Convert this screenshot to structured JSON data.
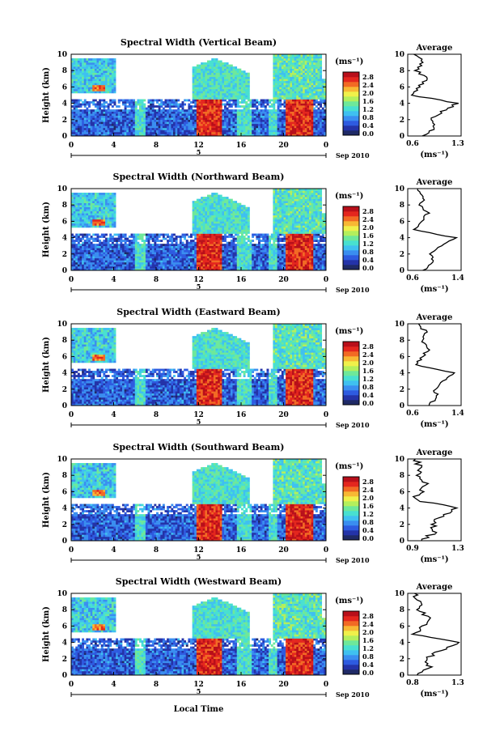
{
  "xlabel": "Local Time",
  "date_label": "Sep 2010",
  "date_day": "5",
  "x_ticks": [
    "0",
    "4",
    "8",
    "12",
    "16",
    "20",
    "0"
  ],
  "y_ticks": [
    "0",
    "2",
    "4",
    "6",
    "8",
    "10"
  ],
  "ylabel": "Height (km)",
  "colorbar_unit": "(ms⁻¹)",
  "colorbar_ticks": [
    "0.0",
    "0.4",
    "0.8",
    "1.2",
    "1.6",
    "2.0",
    "2.4",
    "2.8"
  ],
  "avg_title": "Average",
  "avg_unit": "(ms⁻¹)",
  "colorscale": [
    "#1f2a66",
    "#2433a8",
    "#2e5be0",
    "#3a8ef0",
    "#3fc0f0",
    "#48e0d0",
    "#6ee89a",
    "#b4ef5c",
    "#f0f04a",
    "#f8b834",
    "#f26a24",
    "#e4261e",
    "#b80f1a"
  ],
  "chart_data": [
    {
      "type": "heatmap",
      "title": "Spectral Width (Vertical Beam)",
      "xlabel": "Local Time",
      "ylabel": "Height (km)",
      "xlim": [
        0,
        24
      ],
      "ylim": [
        0,
        10
      ],
      "zlim": [
        0,
        2.8
      ],
      "average": {
        "title": "Average",
        "xlim": [
          0.6,
          1.3
        ],
        "x_ticks": [
          "0.6",
          "1.3"
        ],
        "height": [
          0,
          1,
          2,
          3,
          4,
          5,
          6,
          7,
          8,
          9,
          10
        ],
        "values": [
          0.8,
          0.95,
          0.9,
          1.05,
          1.25,
          0.65,
          0.75,
          0.85,
          0.72,
          0.8,
          0.7
        ]
      }
    },
    {
      "type": "heatmap",
      "title": "Spectral Width (Northward Beam)",
      "xlabel": "Local Time",
      "ylabel": "Height (km)",
      "xlim": [
        0,
        24
      ],
      "ylim": [
        0,
        10
      ],
      "zlim": [
        0,
        2.8
      ],
      "average": {
        "title": "Average",
        "xlim": [
          0.6,
          1.4
        ],
        "x_ticks": [
          "0.6",
          "1.4"
        ],
        "height": [
          0,
          1,
          2,
          3,
          4,
          5,
          6,
          7,
          8,
          9,
          10
        ],
        "values": [
          0.85,
          1.0,
          0.95,
          1.1,
          1.3,
          0.7,
          0.8,
          0.9,
          0.78,
          0.85,
          0.75
        ]
      }
    },
    {
      "type": "heatmap",
      "title": "Spectral Width (Eastward Beam)",
      "xlabel": "Local Time",
      "ylabel": "Height (km)",
      "xlim": [
        0,
        24
      ],
      "ylim": [
        0,
        10
      ],
      "zlim": [
        0,
        2.8
      ],
      "average": {
        "title": "Average",
        "xlim": [
          0.6,
          1.4
        ],
        "x_ticks": [
          "0.6",
          "1.4"
        ],
        "height": [
          0,
          1,
          2,
          3,
          4,
          5,
          6,
          7,
          8,
          9,
          10
        ],
        "values": [
          0.9,
          1.05,
          1.0,
          1.15,
          1.3,
          0.72,
          0.82,
          0.92,
          0.8,
          0.88,
          0.74
        ]
      }
    },
    {
      "type": "heatmap",
      "title": "Spectral Width (Southward Beam)",
      "xlabel": "Local Time",
      "ylabel": "Height (km)",
      "xlim": [
        0,
        24
      ],
      "ylim": [
        0,
        10
      ],
      "zlim": [
        0,
        2.8
      ],
      "average": {
        "title": "Average",
        "xlim": [
          0.9,
          1.3
        ],
        "x_ticks": [
          "0.9",
          "1.3"
        ],
        "height": [
          0,
          1,
          2,
          3,
          4,
          5,
          6,
          7,
          8,
          9,
          10
        ],
        "values": [
          1.0,
          1.1,
          1.08,
          1.15,
          1.28,
          0.95,
          1.0,
          1.05,
          0.98,
          1.0,
          0.95
        ]
      }
    },
    {
      "type": "heatmap",
      "title": "Spectral Width (Westward Beam)",
      "xlabel": "Local Time",
      "ylabel": "Height (km)",
      "xlim": [
        0,
        24
      ],
      "ylim": [
        0,
        10
      ],
      "zlim": [
        0,
        2.8
      ],
      "average": {
        "title": "Average",
        "xlim": [
          0.8,
          1.3
        ],
        "x_ticks": [
          "0.8",
          "1.3"
        ],
        "height": [
          0,
          1,
          2,
          3,
          4,
          5,
          6,
          7,
          8,
          9,
          10
        ],
        "values": [
          0.9,
          1.0,
          0.98,
          1.1,
          1.28,
          0.85,
          0.95,
          1.0,
          0.9,
          0.92,
          0.85
        ]
      }
    }
  ]
}
